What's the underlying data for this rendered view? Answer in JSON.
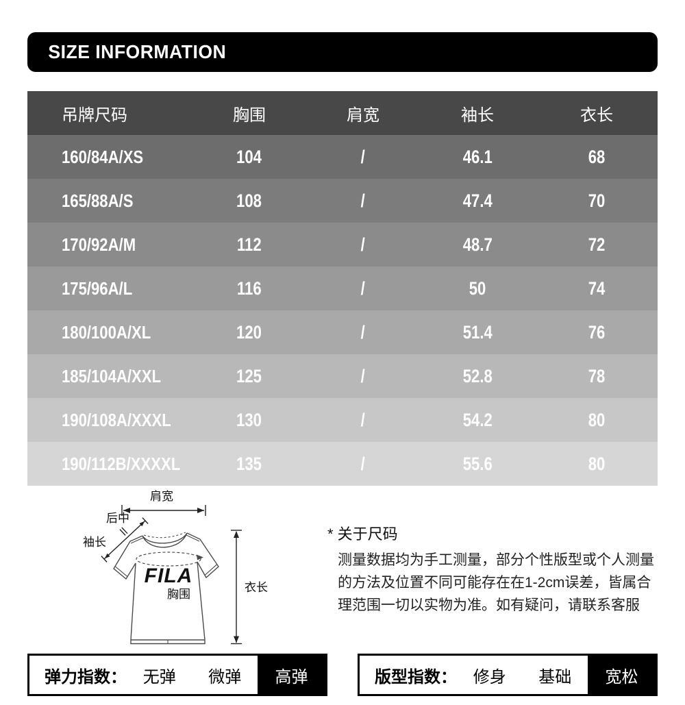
{
  "header": {
    "title": "SIZE INFORMATION"
  },
  "size_table": {
    "columns": [
      "吊牌尺码",
      "胸围",
      "肩宽",
      "袖长",
      "衣长"
    ],
    "rows": [
      [
        "160/84A/XS",
        "104",
        "/",
        "46.1",
        "68"
      ],
      [
        "165/88A/S",
        "108",
        "/",
        "47.4",
        "70"
      ],
      [
        "170/92A/M",
        "112",
        "/",
        "48.7",
        "72"
      ],
      [
        "175/96A/L",
        "116",
        "/",
        "50",
        "74"
      ],
      [
        "180/100A/XL",
        "120",
        "/",
        "51.4",
        "76"
      ],
      [
        "185/104A/XXL",
        "125",
        "/",
        "52.8",
        "78"
      ],
      [
        "190/108A/XXXL",
        "130",
        "/",
        "54.2",
        "80"
      ],
      [
        "190/112B/XXXXL",
        "135",
        "/",
        "55.6",
        "80"
      ]
    ],
    "header_bg": "#484848",
    "row_colors": [
      "#6d6d6d",
      "#7c7c7c",
      "#8b8b8b",
      "#9a9a9a",
      "#a9a9a9",
      "#b8b8b8",
      "#c7c7c7",
      "#d6d6d6"
    ],
    "text_color": "#ffffff"
  },
  "diagram": {
    "logo_text": "FILA",
    "labels": {
      "shoulder_width": "肩宽",
      "back_center": "后中",
      "sleeve_length": "袖长",
      "garment_length": "衣长",
      "chest": "胸围"
    }
  },
  "notes": {
    "title": "* 关于尺码",
    "body": "测量数据均为手工测量，部分个性版型或个人测量的方法及位置不同可能存在在1-2cm误差，皆属合理范围一切以实物为准。如有疑问，请联系客服"
  },
  "indices": {
    "elastic": {
      "label": "弹力指数：",
      "options": [
        "无弹",
        "微弹",
        "高弹"
      ],
      "selected": "高弹"
    },
    "fit": {
      "label": "版型指数：",
      "options": [
        "修身",
        "基础",
        "宽松"
      ],
      "selected": "宽松"
    }
  },
  "accent_colors": {
    "highlight_bg": "#000000",
    "highlight_text": "#ffffff",
    "title_bar_bg": "#000000"
  }
}
